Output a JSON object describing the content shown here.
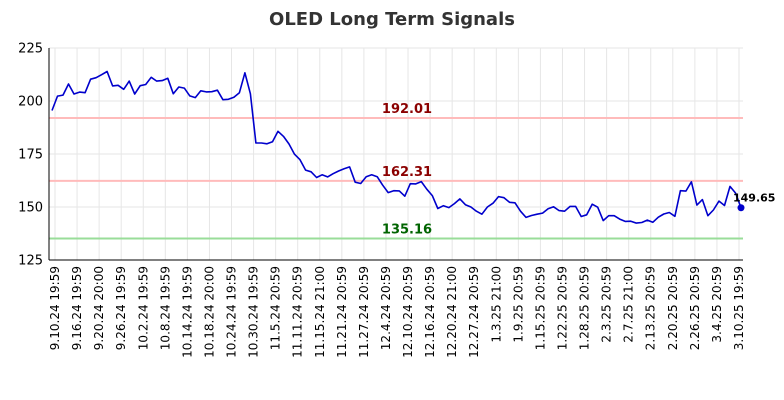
{
  "chart_data": {
    "type": "line",
    "title": "OLED Long Term Signals",
    "xlabel": "",
    "ylabel": "",
    "ylim": [
      125,
      225
    ],
    "yticks": [
      125,
      150,
      175,
      200,
      225
    ],
    "grid": true,
    "legend": "none",
    "line_color": "#0000cc",
    "x_tick_labels": [
      "9.10.24 19:59",
      "9.16.24 19:59",
      "9.20.24 20:00",
      "9.26.24 19:59",
      "10.2.24 19:59",
      "10.8.24 19:59",
      "10.14.24 19:59",
      "10.18.24 20:00",
      "10.24.24 19:59",
      "10.30.24 19:59",
      "11.5.24 20:59",
      "11.11.24 20:59",
      "11.15.24 21:00",
      "11.21.24 20:59",
      "11.27.24 20:59",
      "12.4.24 20:59",
      "12.10.24 20:59",
      "12.16.24 20:59",
      "12.20.24 21:00",
      "12.27.24 20:59",
      "1.3.25 21:00",
      "1.9.25 20:59",
      "1.15.25 20:59",
      "1.22.25 20:59",
      "1.28.25 20:59",
      "2.3.25 20:59",
      "2.7.25 21:00",
      "2.13.25 20:59",
      "2.20.25 20:59",
      "2.26.25 20:59",
      "3.4.25 20:59",
      "3.10.25 19:59"
    ],
    "values": [
      195.5,
      202.3,
      202.8,
      208.0,
      203.3,
      204.2,
      203.9,
      210.3,
      211.0,
      212.4,
      213.9,
      207.1,
      207.4,
      205.5,
      209.4,
      203.3,
      207.2,
      207.8,
      211.2,
      209.4,
      209.6,
      210.7,
      203.4,
      206.6,
      206.1,
      202.4,
      201.6,
      204.8,
      204.3,
      204.4,
      205.1,
      200.6,
      200.8,
      201.8,
      203.9,
      213.3,
      203.4,
      180.2,
      180.2,
      179.8,
      180.8,
      185.7,
      183.3,
      179.7,
      174.9,
      172.3,
      167.4,
      166.6,
      163.9,
      165.2,
      164.2,
      165.7,
      167.0,
      168.0,
      168.9,
      161.7,
      161.1,
      164.3,
      165.2,
      164.3,
      160.3,
      156.8,
      157.7,
      157.6,
      155.1,
      161.0,
      160.9,
      162.0,
      158.4,
      155.4,
      149.3,
      150.6,
      149.7,
      151.6,
      153.8,
      151.1,
      150.0,
      148.0,
      146.6,
      150.0,
      151.8,
      154.9,
      154.4,
      152.2,
      152.0,
      148.0,
      145.1,
      146.0,
      146.6,
      147.1,
      149.2,
      150.1,
      148.3,
      148.0,
      150.3,
      150.3,
      145.5,
      146.3,
      151.3,
      149.9,
      143.6,
      145.9,
      145.9,
      144.3,
      143.2,
      143.3,
      142.4,
      142.7,
      143.8,
      142.8,
      145.2,
      146.7,
      147.4,
      145.6,
      157.7,
      157.5,
      161.9,
      150.9,
      153.5,
      145.9,
      148.6,
      152.8,
      150.7,
      159.7,
      156.6,
      149.65
    ],
    "hlines": [
      {
        "value": 192.01,
        "label": "192.01",
        "line_color": "#ffbbbb",
        "label_color": "#8b0000"
      },
      {
        "value": 162.31,
        "label": "162.31",
        "line_color": "#ffbbbb",
        "label_color": "#8b0000"
      },
      {
        "value": 135.16,
        "label": "135.16",
        "line_color": "#99dd99",
        "label_color": "#006400"
      }
    ],
    "last_value_label": "149.65"
  }
}
